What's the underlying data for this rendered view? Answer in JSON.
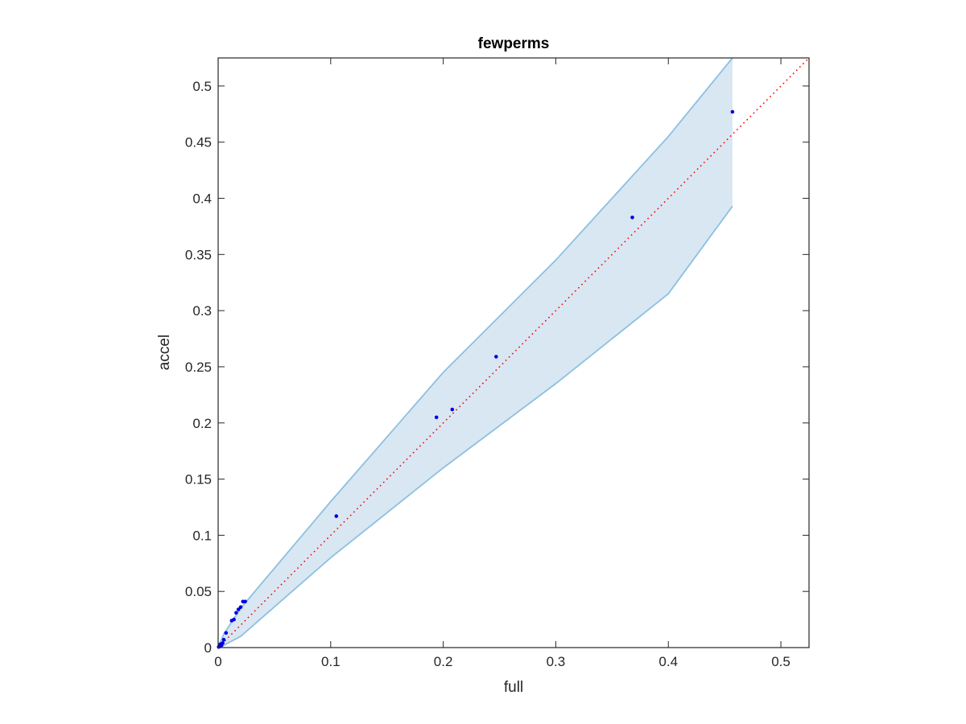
{
  "chart_data": {
    "type": "scatter",
    "title": "fewperms",
    "xlabel": "full",
    "ylabel": "accel",
    "xlim": [
      0,
      0.525
    ],
    "ylim": [
      0,
      0.525
    ],
    "xticks": [
      0,
      0.1,
      0.2,
      0.3,
      0.4,
      0.5
    ],
    "xtick_labels": [
      "0",
      "0.1",
      "0.2",
      "0.3",
      "0.4",
      "0.5"
    ],
    "yticks": [
      0,
      0.05,
      0.1,
      0.15,
      0.2,
      0.25,
      0.3,
      0.35,
      0.4,
      0.45,
      0.5
    ],
    "ytick_labels": [
      "0",
      "0.05",
      "0.1",
      "0.15",
      "0.2",
      "0.25",
      "0.3",
      "0.35",
      "0.4",
      "0.45",
      "0.5"
    ],
    "grid": false,
    "box": true,
    "colors": {
      "points": "#0000e6",
      "reference_line": "#ff0000",
      "band_fill": "#d9e7f3",
      "band_edge": "#8cc0e0",
      "axes": "#262626"
    },
    "series": [
      {
        "type": "scatter",
        "x": [
          0.0005,
          0.001,
          0.0015,
          0.002,
          0.003,
          0.004,
          0.005,
          0.007,
          0.012,
          0.014,
          0.016,
          0.018,
          0.02,
          0.022,
          0.024,
          0.105,
          0.194,
          0.208,
          0.247,
          0.368,
          0.457
        ],
        "y": [
          0.0005,
          0.001,
          0.0015,
          0.003,
          0.002,
          0.004,
          0.007,
          0.013,
          0.024,
          0.025,
          0.031,
          0.034,
          0.036,
          0.041,
          0.041,
          0.117,
          0.205,
          0.212,
          0.259,
          0.383,
          0.477
        ]
      },
      {
        "type": "line",
        "style": "dotted",
        "x": [
          0,
          0.525
        ],
        "y": [
          0,
          0.525
        ]
      },
      {
        "type": "area",
        "x": [
          0,
          0.005,
          0.02,
          0.1,
          0.2,
          0.3,
          0.4,
          0.457
        ],
        "upper": [
          0,
          0.012,
          0.035,
          0.13,
          0.245,
          0.345,
          0.455,
          0.525
        ],
        "lower": [
          0,
          0.002,
          0.01,
          0.08,
          0.16,
          0.235,
          0.315,
          0.393
        ]
      }
    ]
  }
}
